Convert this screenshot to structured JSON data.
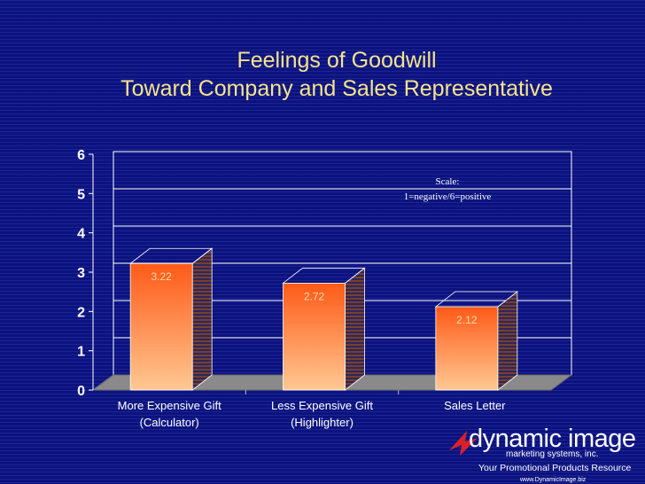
{
  "slide": {
    "title_line1": "Feelings of Goodwill",
    "title_line2": "Toward Company and Sales Representative"
  },
  "chart_data": {
    "type": "bar",
    "categories": [
      [
        "More Expensive Gift",
        "(Calculator)"
      ],
      [
        "Less Expensive Gift",
        "(Highlighter)"
      ],
      [
        "Sales Letter"
      ]
    ],
    "values": [
      3.22,
      2.72,
      2.12
    ],
    "value_labels": [
      "3.22",
      "2.72",
      "2.12"
    ],
    "y_ticks": [
      "0",
      "1",
      "2",
      "3",
      "4",
      "5",
      "6"
    ],
    "ylim": [
      0,
      6
    ],
    "grid": true,
    "annotation": [
      "Scale:",
      "1=negative/6=positive"
    ],
    "colors": {
      "bar_top": "#ff5a17",
      "bar_bottom": "#ffc893",
      "bar_side": "#7a3e2a",
      "label": "#ffd9a8",
      "axis_text": "#ffffff",
      "floor": "#8a8a8a",
      "grid": "#ffffff"
    }
  },
  "logo": {
    "name": "dynamic image",
    "subtitle": "marketing systems, inc.",
    "tagline": "Your Promotional Products Resource",
    "url": "www.DynamicImage.biz"
  }
}
